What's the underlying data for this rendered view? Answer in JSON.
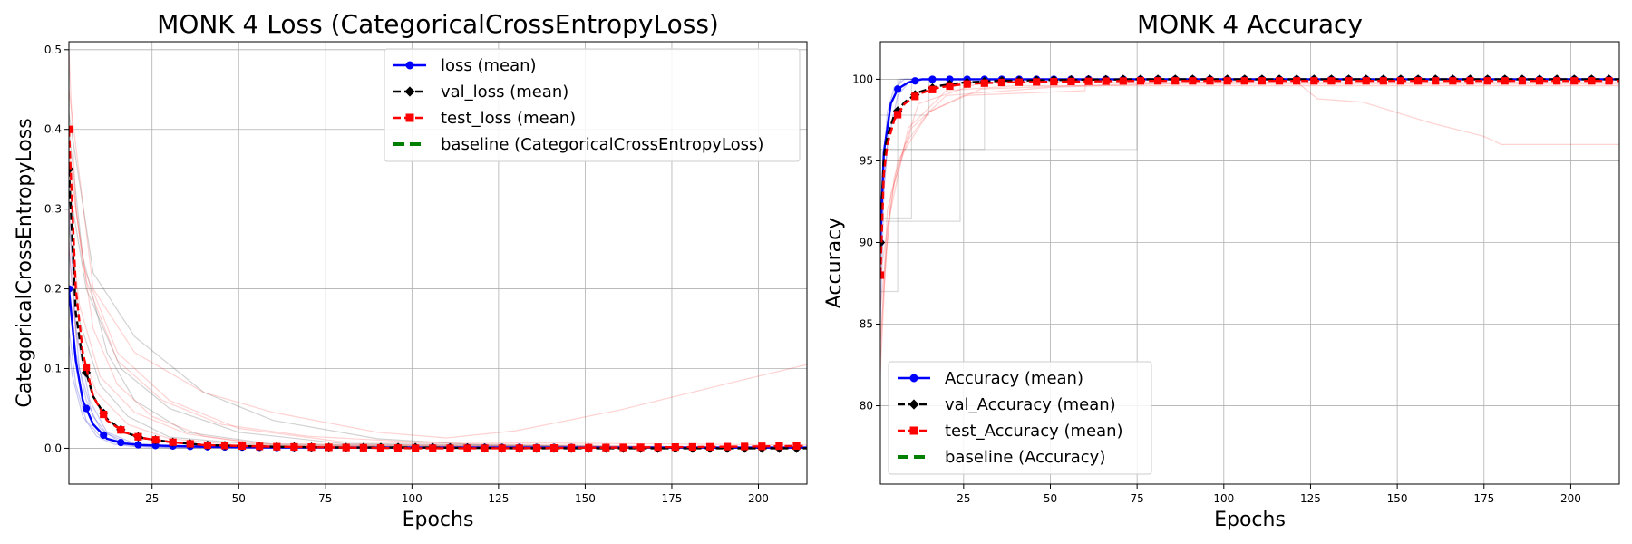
{
  "chart_data": [
    {
      "type": "line",
      "title": "MONK 4 Loss (CategoricalCrossEntropyLoss)",
      "xlabel": "Epochs",
      "ylabel": "CategoricalCrossEntropyLoss",
      "xlim": [
        1,
        214
      ],
      "ylim": [
        -0.045,
        0.51
      ],
      "xticks": [
        "25",
        "50",
        "75",
        "100",
        "125",
        "150",
        "175",
        "200"
      ],
      "yticks": [
        "0.0",
        "0.1",
        "0.2",
        "0.3",
        "0.4",
        "0.5"
      ],
      "grid": true,
      "legend_position": "top-right",
      "legend": [
        {
          "label": "loss (mean)",
          "color": "#0000ff",
          "marker": "circle",
          "dash": "solid"
        },
        {
          "label": "val_loss (mean)",
          "color": "#000000",
          "marker": "diamond",
          "dash": "dashed"
        },
        {
          "label": "test_loss (mean)",
          "color": "#ff0000",
          "marker": "square",
          "dash": "dashed"
        },
        {
          "label": "baseline (CategoricalCrossEntropyLoss)",
          "color": "#008000",
          "marker": "none",
          "dash": "dashed"
        }
      ],
      "series": [
        {
          "key": "loss",
          "color": "#0000ff",
          "marker": "circle",
          "dash": "solid",
          "x": [
            1,
            3,
            5,
            8,
            12,
            17,
            22,
            30,
            40,
            60,
            80,
            100,
            130,
            160,
            190,
            214
          ],
          "y": [
            0.2,
            0.11,
            0.06,
            0.03,
            0.012,
            0.006,
            0.004,
            0.003,
            0.002,
            0.001,
            0.001,
            0.001,
            0.001,
            0.001,
            0.001,
            0.001
          ]
        },
        {
          "key": "val_loss",
          "color": "#000000",
          "marker": "diamond",
          "dash": "dashed",
          "x": [
            1,
            3,
            5,
            8,
            12,
            17,
            22,
            30,
            40,
            60,
            80,
            100,
            130,
            160,
            190,
            214
          ],
          "y": [
            0.35,
            0.17,
            0.11,
            0.065,
            0.037,
            0.02,
            0.013,
            0.008,
            0.004,
            0.002,
            0.001,
            0.001,
            0.0,
            0.0,
            0.0,
            0.0
          ]
        },
        {
          "key": "test_loss",
          "color": "#ff0000",
          "marker": "square",
          "dash": "dashed",
          "x": [
            1,
            3,
            5,
            8,
            12,
            17,
            22,
            30,
            40,
            60,
            80,
            100,
            130,
            160,
            190,
            214
          ],
          "y": [
            0.4,
            0.2,
            0.12,
            0.065,
            0.035,
            0.02,
            0.013,
            0.008,
            0.004,
            0.002,
            0.001,
            0.0,
            0.0,
            0.001,
            0.002,
            0.003
          ]
        }
      ],
      "faint_runs": [
        {
          "color": "#0000cc",
          "x": [
            1,
            3,
            6,
            10,
            15,
            20,
            30,
            50,
            214
          ],
          "y": [
            0.2,
            0.12,
            0.06,
            0.025,
            0.01,
            0.004,
            0.002,
            0.001,
            0.0
          ]
        },
        {
          "color": "#0000cc",
          "x": [
            1,
            3,
            6,
            10,
            15,
            20,
            30,
            50,
            214
          ],
          "y": [
            0.15,
            0.08,
            0.035,
            0.015,
            0.006,
            0.003,
            0.001,
            0.0,
            0.0
          ]
        },
        {
          "color": "#0000cc",
          "x": [
            1,
            4,
            8,
            12,
            18,
            25,
            40,
            214
          ],
          "y": [
            0.25,
            0.1,
            0.04,
            0.018,
            0.007,
            0.003,
            0.001,
            0.0
          ]
        },
        {
          "color": "#0000cc",
          "x": [
            1,
            2,
            5,
            9,
            14,
            20,
            30,
            214
          ],
          "y": [
            0.13,
            0.09,
            0.04,
            0.015,
            0.005,
            0.002,
            0.001,
            0.0
          ]
        },
        {
          "color": "#0000cc",
          "x": [
            1,
            3,
            7,
            12,
            20,
            35,
            214
          ],
          "y": [
            0.3,
            0.15,
            0.06,
            0.02,
            0.006,
            0.002,
            0.0
          ]
        },
        {
          "color": "#333333",
          "x": [
            1,
            5,
            12,
            20,
            35,
            60,
            214
          ],
          "y": [
            0.4,
            0.24,
            0.12,
            0.06,
            0.02,
            0.005,
            0.0
          ]
        },
        {
          "color": "#333333",
          "x": [
            1,
            4,
            10,
            18,
            30,
            60,
            214
          ],
          "y": [
            0.28,
            0.16,
            0.08,
            0.04,
            0.014,
            0.003,
            0.0
          ]
        },
        {
          "color": "#333333",
          "x": [
            1,
            6,
            16,
            30,
            50,
            80,
            214
          ],
          "y": [
            0.33,
            0.2,
            0.1,
            0.05,
            0.02,
            0.006,
            0.0
          ]
        },
        {
          "color": "#333333",
          "x": [
            1,
            8,
            20,
            40,
            60,
            90,
            120,
            214
          ],
          "y": [
            0.42,
            0.22,
            0.14,
            0.07,
            0.035,
            0.012,
            0.004,
            0.0
          ]
        },
        {
          "color": "#ff3333",
          "x": [
            1,
            3,
            8,
            15,
            25,
            40,
            60,
            214
          ],
          "y": [
            0.5,
            0.3,
            0.15,
            0.08,
            0.04,
            0.015,
            0.004,
            0.0
          ]
        },
        {
          "color": "#ff3333",
          "x": [
            1,
            8,
            20,
            40,
            60,
            90,
            110,
            130,
            160,
            190,
            214
          ],
          "y": [
            0.45,
            0.2,
            0.12,
            0.07,
            0.045,
            0.02,
            0.013,
            0.022,
            0.048,
            0.08,
            0.105
          ]
        },
        {
          "color": "#ff3333",
          "x": [
            1,
            5,
            15,
            30,
            50,
            80,
            214
          ],
          "y": [
            0.38,
            0.23,
            0.12,
            0.06,
            0.025,
            0.008,
            0.0
          ]
        },
        {
          "color": "#ff3333",
          "x": [
            1,
            4,
            10,
            20,
            35,
            55,
            214
          ],
          "y": [
            0.3,
            0.18,
            0.09,
            0.045,
            0.018,
            0.006,
            0.0
          ]
        },
        {
          "color": "#ff3333",
          "x": [
            1,
            3,
            9,
            18,
            30,
            50,
            214
          ],
          "y": [
            0.26,
            0.14,
            0.07,
            0.03,
            0.012,
            0.004,
            0.0
          ]
        },
        {
          "color": "#ff3333",
          "x": [
            1,
            6,
            15,
            28,
            45,
            70,
            100,
            214
          ],
          "y": [
            0.36,
            0.21,
            0.11,
            0.06,
            0.03,
            0.015,
            0.008,
            0.004
          ]
        }
      ]
    },
    {
      "type": "line",
      "title": "MONK 4 Accuracy",
      "xlabel": "Epochs",
      "ylabel": "Accuracy",
      "xlim": [
        1,
        214
      ],
      "ylim": [
        75.2,
        102.3
      ],
      "xticks": [
        "25",
        "50",
        "75",
        "100",
        "125",
        "150",
        "175",
        "200"
      ],
      "yticks": [
        "80",
        "85",
        "90",
        "95",
        "100"
      ],
      "grid": true,
      "legend_position": "lower-left",
      "legend": [
        {
          "label": "Accuracy (mean)",
          "color": "#0000ff",
          "marker": "circle",
          "dash": "solid"
        },
        {
          "label": "val_Accuracy (mean)",
          "color": "#000000",
          "marker": "diamond",
          "dash": "dashed"
        },
        {
          "label": "test_Accuracy (mean)",
          "color": "#ff0000",
          "marker": "square",
          "dash": "dashed"
        },
        {
          "label": "baseline (Accuracy)",
          "color": "#008000",
          "marker": "none",
          "dash": "dashed"
        }
      ],
      "series": [
        {
          "key": "acc",
          "color": "#0000ff",
          "marker": "circle",
          "dash": "solid",
          "x": [
            1,
            2,
            4,
            6,
            9,
            13,
            20,
            30,
            50,
            100,
            150,
            214
          ],
          "y": [
            90,
            95.5,
            98.5,
            99.4,
            99.8,
            100,
            100,
            100,
            100,
            100,
            100,
            100
          ]
        },
        {
          "key": "val_acc",
          "color": "#000000",
          "marker": "diamond",
          "dash": "dashed",
          "x": [
            1,
            2,
            3,
            5,
            8,
            12,
            18,
            25,
            35,
            50,
            75,
            100,
            150,
            214
          ],
          "y": [
            90,
            95.2,
            96.5,
            97.8,
            98.6,
            99.2,
            99.6,
            99.8,
            99.9,
            99.95,
            100,
            100,
            100,
            100
          ]
        },
        {
          "key": "test_acc",
          "color": "#ff0000",
          "marker": "square",
          "dash": "dashed",
          "x": [
            1,
            2,
            3,
            5,
            8,
            12,
            18,
            25,
            35,
            50,
            75,
            100,
            150,
            214
          ],
          "y": [
            88,
            94.2,
            96,
            97.5,
            98.5,
            99.1,
            99.5,
            99.7,
            99.8,
            99.85,
            99.9,
            99.9,
            99.9,
            99.9
          ]
        }
      ],
      "faint_runs": [
        {
          "color": "#0000cc",
          "x": [
            1,
            2,
            3,
            5,
            8,
            214
          ],
          "y": [
            88,
            95,
            98,
            99.5,
            100,
            100
          ]
        },
        {
          "color": "#0000cc",
          "x": [
            1,
            3,
            6,
            10,
            214
          ],
          "y": [
            91,
            96,
            99,
            100,
            100
          ]
        },
        {
          "color": "#0000cc",
          "x": [
            1,
            2,
            4,
            7,
            214
          ],
          "y": [
            85,
            93,
            98.5,
            100,
            100
          ]
        },
        {
          "color": "#555555",
          "x": [
            1,
            6,
            6,
            214
          ],
          "y": [
            87,
            87,
            100,
            100
          ]
        },
        {
          "color": "#555555",
          "x": [
            1,
            10,
            10,
            214
          ],
          "y": [
            91.5,
            91.5,
            100,
            100
          ]
        },
        {
          "color": "#555555",
          "x": [
            1,
            24,
            24,
            214
          ],
          "y": [
            91.3,
            91.3,
            100,
            100
          ]
        },
        {
          "color": "#555555",
          "x": [
            1,
            31,
            31,
            214
          ],
          "y": [
            95.7,
            95.7,
            100,
            100
          ]
        },
        {
          "color": "#555555",
          "x": [
            1,
            75,
            75,
            214
          ],
          "y": [
            95.7,
            95.7,
            100,
            100
          ]
        },
        {
          "color": "#555555",
          "x": [
            1,
            15,
            15,
            214
          ],
          "y": [
            97.8,
            97.8,
            100,
            100
          ]
        },
        {
          "color": "#ff3333",
          "x": [
            1,
            3,
            8,
            15,
            25,
            60,
            60,
            214
          ],
          "y": [
            83,
            92,
            96,
            98,
            99,
            99.3,
            100,
            100
          ]
        },
        {
          "color": "#ff3333",
          "x": [
            1,
            4,
            10,
            20,
            50,
            120,
            127,
            140,
            160,
            175,
            180,
            214
          ],
          "y": [
            84,
            93,
            97,
            99,
            99.5,
            100,
            98.8,
            98.6,
            97.3,
            96.5,
            96,
            96
          ]
        },
        {
          "color": "#ff3333",
          "x": [
            1,
            5,
            12,
            30,
            214
          ],
          "y": [
            86,
            94,
            98.5,
            99.8,
            99.8
          ]
        },
        {
          "color": "#ff3333",
          "x": [
            1,
            3,
            9,
            20,
            40,
            214
          ],
          "y": [
            82,
            91,
            97,
            99.3,
            99.6,
            99.6
          ]
        },
        {
          "color": "#ff3333",
          "x": [
            1,
            6,
            15,
            30,
            70,
            214
          ],
          "y": [
            88,
            95,
            98,
            99.4,
            99.7,
            99.7
          ]
        }
      ]
    }
  ]
}
